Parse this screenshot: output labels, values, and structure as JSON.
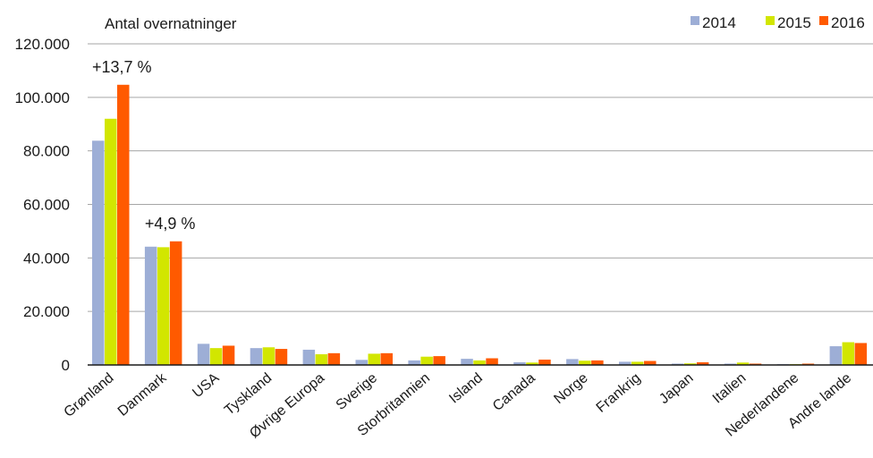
{
  "chart_data": {
    "type": "bar",
    "ylabel": "Antal overnatninger",
    "ylim": [
      0,
      120000
    ],
    "yticks": [
      0,
      20000,
      40000,
      60000,
      80000,
      100000,
      120000
    ],
    "ytick_labels": [
      "0",
      "20.000",
      "40.000",
      "60.000",
      "80.000",
      "100.000",
      "120.000"
    ],
    "grid": true,
    "legend_position": "top-right",
    "categories": [
      "Grønland",
      "Danmark",
      "USA",
      "Tyskland",
      "Øvrige Europa",
      "Sverige",
      "Storbritannien",
      "Island",
      "Canada",
      "Norge",
      "Frankrig",
      "Japan",
      "Italien",
      "Nederlandene",
      "Andre lande"
    ],
    "series": [
      {
        "name": "2014",
        "color": "#9daed6",
        "values": [
          83800,
          44200,
          7900,
          6300,
          5700,
          1900,
          1700,
          2300,
          1000,
          2200,
          1200,
          500,
          500,
          300,
          7000
        ]
      },
      {
        "name": "2015",
        "color": "#d2e600",
        "values": [
          92000,
          44000,
          6300,
          6600,
          4000,
          4200,
          3100,
          1700,
          900,
          1600,
          1200,
          600,
          900,
          300,
          8500
        ]
      },
      {
        "name": "2016",
        "color": "#ff5a00",
        "values": [
          104700,
          46200,
          7200,
          6000,
          4400,
          4400,
          3300,
          2500,
          2000,
          1700,
          1500,
          1000,
          500,
          500,
          8200
        ]
      }
    ],
    "annotations": [
      {
        "category": "Grønland",
        "text": "+13,7 %"
      },
      {
        "category": "Danmark",
        "text": "+4,9 %"
      }
    ]
  }
}
